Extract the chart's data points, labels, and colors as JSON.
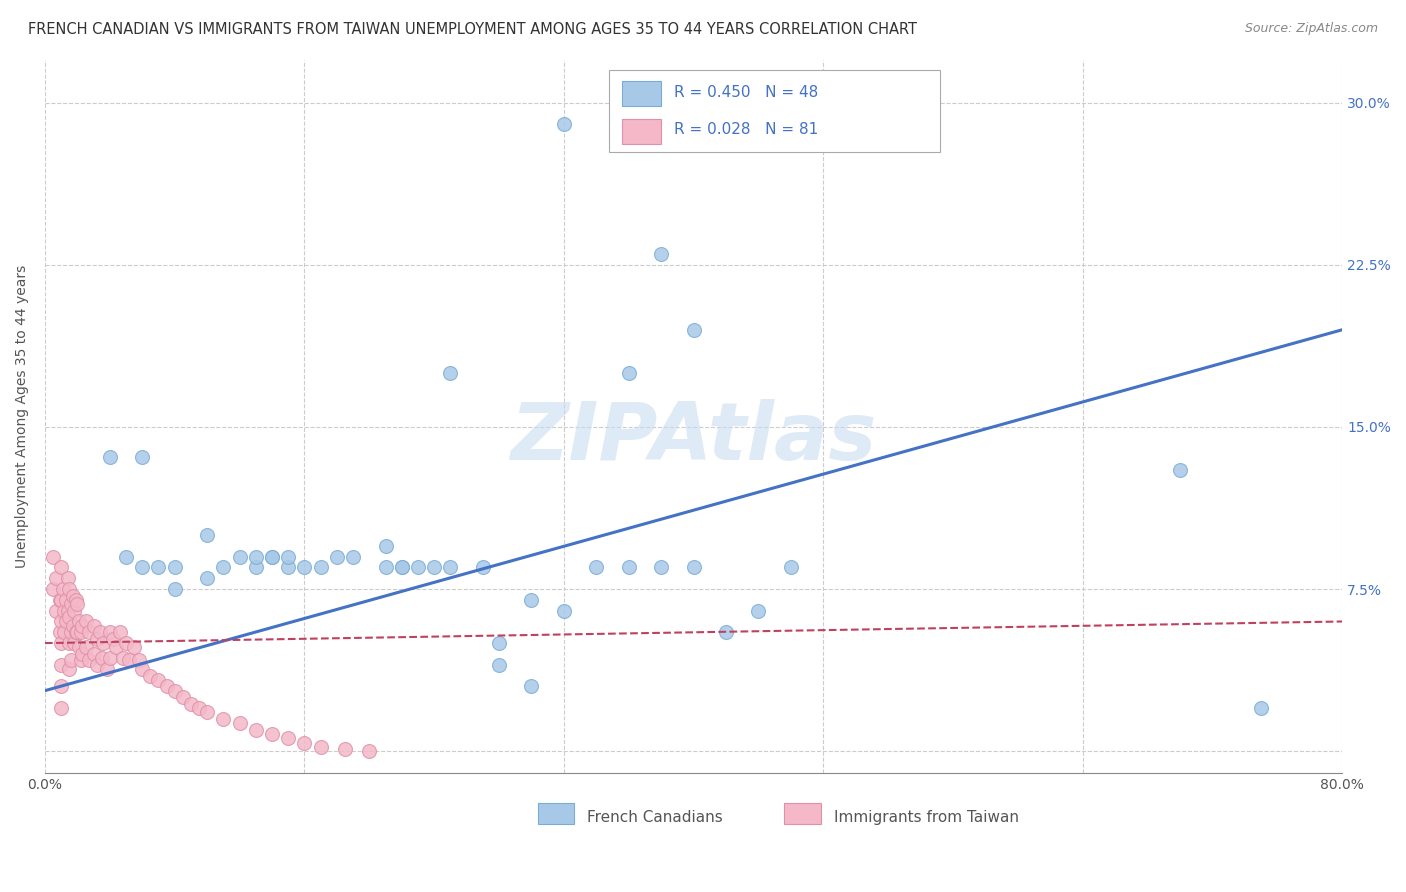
{
  "title": "FRENCH CANADIAN VS IMMIGRANTS FROM TAIWAN UNEMPLOYMENT AMONG AGES 35 TO 44 YEARS CORRELATION CHART",
  "source": "Source: ZipAtlas.com",
  "ylabel": "Unemployment Among Ages 35 to 44 years",
  "xlim": [
    0.0,
    0.8
  ],
  "ylim": [
    -0.01,
    0.32
  ],
  "xticks": [
    0.0,
    0.16,
    0.32,
    0.48,
    0.64,
    0.8
  ],
  "yticks": [
    0.0,
    0.075,
    0.15,
    0.225,
    0.3
  ],
  "watermark": "ZIPAtlas",
  "legend1_label": "French Canadians",
  "legend2_label": "Immigrants from Taiwan",
  "R1": 0.45,
  "N1": 48,
  "R2": 0.028,
  "N2": 81,
  "blue_color": "#a8c8e8",
  "blue_edge": "#7aadd4",
  "pink_color": "#f4b8c8",
  "pink_edge": "#e090a8",
  "trend_blue": "#4472c4",
  "trend_pink": "#c04060",
  "blue_trend_x": [
    0.0,
    0.8
  ],
  "blue_trend_y": [
    0.028,
    0.195
  ],
  "pink_trend_x": [
    0.0,
    0.8
  ],
  "pink_trend_y": [
    0.05,
    0.06
  ],
  "grid_color": "#cccccc",
  "background_color": "#ffffff",
  "title_fontsize": 10.5,
  "source_fontsize": 9,
  "axis_label_fontsize": 10,
  "tick_fontsize": 10,
  "legend_fontsize": 11,
  "watermark_fontsize": 58,
  "blue_scatter_x": [
    0.32,
    0.04,
    0.06,
    0.38,
    0.4,
    0.36,
    0.25,
    0.05,
    0.06,
    0.07,
    0.08,
    0.1,
    0.08,
    0.1,
    0.12,
    0.13,
    0.11,
    0.14,
    0.13,
    0.15,
    0.16,
    0.18,
    0.17,
    0.14,
    0.15,
    0.19,
    0.21,
    0.22,
    0.21,
    0.23,
    0.25,
    0.22,
    0.27,
    0.24,
    0.28,
    0.3,
    0.32,
    0.34,
    0.36,
    0.38,
    0.4,
    0.42,
    0.44,
    0.46,
    0.28,
    0.3,
    0.7,
    0.75
  ],
  "blue_scatter_y": [
    0.29,
    0.136,
    0.136,
    0.23,
    0.195,
    0.175,
    0.175,
    0.09,
    0.085,
    0.085,
    0.085,
    0.1,
    0.075,
    0.08,
    0.09,
    0.085,
    0.085,
    0.09,
    0.09,
    0.085,
    0.085,
    0.09,
    0.085,
    0.09,
    0.09,
    0.09,
    0.095,
    0.085,
    0.085,
    0.085,
    0.085,
    0.085,
    0.085,
    0.085,
    0.05,
    0.07,
    0.065,
    0.085,
    0.085,
    0.085,
    0.085,
    0.055,
    0.065,
    0.085,
    0.04,
    0.03,
    0.13,
    0.02
  ],
  "pink_scatter_x": [
    0.005,
    0.005,
    0.007,
    0.007,
    0.009,
    0.009,
    0.01,
    0.01,
    0.01,
    0.01,
    0.01,
    0.01,
    0.01,
    0.011,
    0.012,
    0.012,
    0.013,
    0.013,
    0.014,
    0.014,
    0.015,
    0.015,
    0.015,
    0.015,
    0.016,
    0.016,
    0.016,
    0.017,
    0.017,
    0.018,
    0.018,
    0.019,
    0.019,
    0.02,
    0.02,
    0.021,
    0.021,
    0.022,
    0.022,
    0.023,
    0.023,
    0.025,
    0.025,
    0.027,
    0.027,
    0.03,
    0.03,
    0.032,
    0.032,
    0.034,
    0.035,
    0.036,
    0.038,
    0.04,
    0.04,
    0.042,
    0.044,
    0.046,
    0.048,
    0.05,
    0.052,
    0.055,
    0.058,
    0.06,
    0.065,
    0.07,
    0.075,
    0.08,
    0.085,
    0.09,
    0.095,
    0.1,
    0.11,
    0.12,
    0.13,
    0.14,
    0.15,
    0.16,
    0.17,
    0.185,
    0.2
  ],
  "pink_scatter_y": [
    0.09,
    0.075,
    0.08,
    0.065,
    0.07,
    0.055,
    0.085,
    0.07,
    0.06,
    0.05,
    0.04,
    0.03,
    0.02,
    0.075,
    0.065,
    0.055,
    0.07,
    0.06,
    0.08,
    0.065,
    0.075,
    0.062,
    0.05,
    0.038,
    0.068,
    0.055,
    0.042,
    0.072,
    0.058,
    0.065,
    0.05,
    0.07,
    0.055,
    0.068,
    0.055,
    0.06,
    0.048,
    0.055,
    0.042,
    0.058,
    0.045,
    0.06,
    0.048,
    0.055,
    0.042,
    0.058,
    0.045,
    0.052,
    0.04,
    0.055,
    0.043,
    0.05,
    0.038,
    0.055,
    0.043,
    0.052,
    0.048,
    0.055,
    0.043,
    0.05,
    0.042,
    0.048,
    0.042,
    0.038,
    0.035,
    0.033,
    0.03,
    0.028,
    0.025,
    0.022,
    0.02,
    0.018,
    0.015,
    0.013,
    0.01,
    0.008,
    0.006,
    0.004,
    0.002,
    0.001,
    0.0
  ]
}
